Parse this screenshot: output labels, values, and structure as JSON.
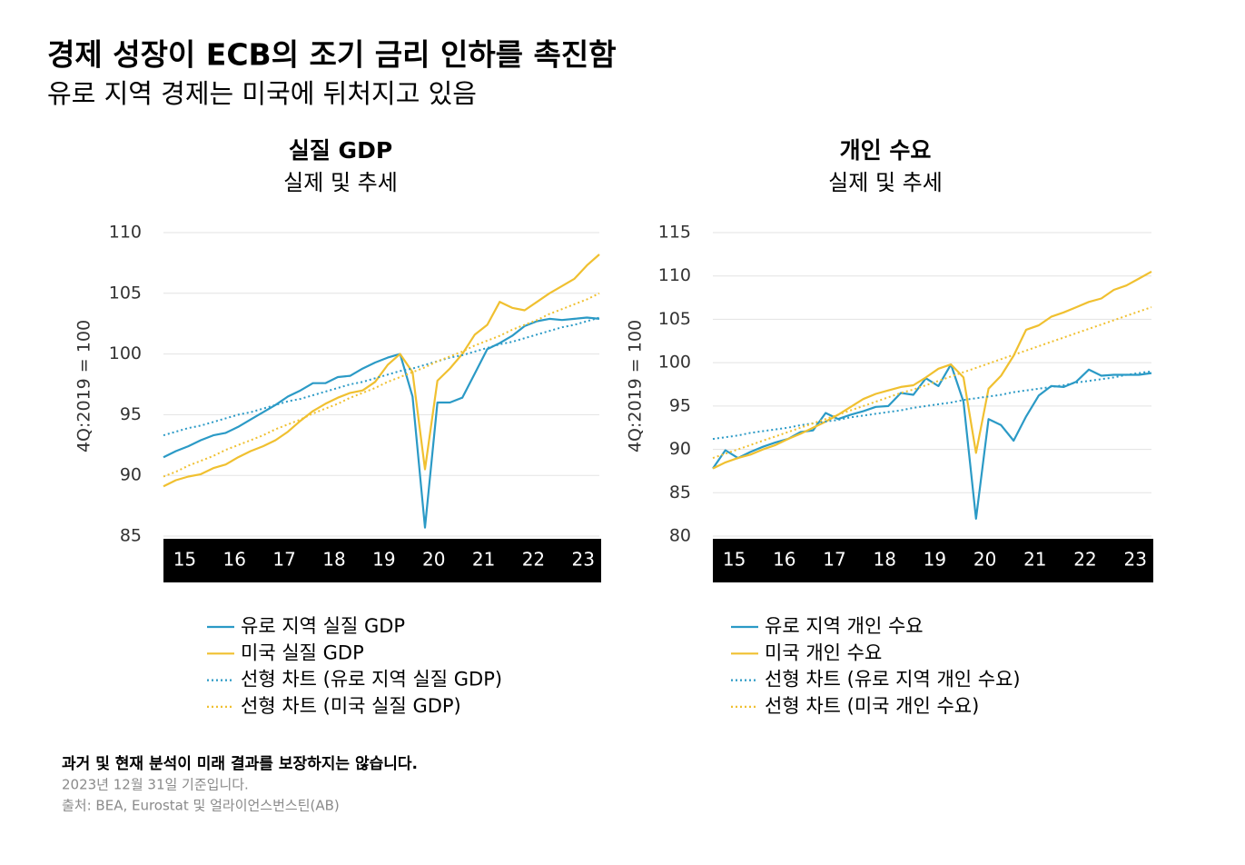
{
  "title": "경제 성장이 ECB의 조기 금리 인하를 촉진함",
  "subtitle": "유로 지역 경제는 미국에 뒤처지고 있음",
  "footnote": "과거 및 현재 분석이 미래 결과를 보장하지는 않습니다.",
  "date_note": "2023년 12월 31일 기준입니다.",
  "source": "출처: BEA, Eurostat 및 얼라이언스번스틴(AB)",
  "chart_data": [
    {
      "type": "line",
      "title": "실질 GDP",
      "subtitle": "실제 및 추세",
      "ylabel": "4Q:2019 = 100",
      "categories": [
        null,
        null,
        "15",
        null,
        null,
        null,
        "16",
        null,
        null,
        null,
        "17",
        null,
        null,
        null,
        "18",
        null,
        null,
        null,
        "19",
        null,
        null,
        null,
        "20",
        null,
        null,
        null,
        "21",
        null,
        null,
        null,
        "22",
        null,
        null,
        null,
        "23",
        null
      ],
      "ylim": [
        85,
        110
      ],
      "yticks": [
        85,
        90,
        95,
        100,
        105,
        110
      ],
      "grid": true,
      "series": [
        {
          "name": "유로 지역 실질 GDP",
          "color": "#2b9ac6",
          "dashed": false,
          "values": [
            91.5,
            92.0,
            92.4,
            92.9,
            93.3,
            93.5,
            94.0,
            94.6,
            95.2,
            95.8,
            96.5,
            97.0,
            97.6,
            97.6,
            98.1,
            98.2,
            98.8,
            99.3,
            99.7,
            100.0,
            96.5,
            85.7,
            96.0,
            96.0,
            96.4,
            98.4,
            100.4,
            100.9,
            101.5,
            102.3,
            102.7,
            102.9,
            102.8,
            102.9,
            103.0,
            102.9
          ]
        },
        {
          "name": "미국 실질 GDP",
          "color": "#f0c030",
          "dashed": false,
          "values": [
            89.1,
            89.6,
            89.9,
            90.1,
            90.6,
            90.9,
            91.5,
            92.0,
            92.4,
            92.9,
            93.6,
            94.5,
            95.3,
            95.9,
            96.4,
            96.8,
            97.0,
            97.7,
            99.1,
            100.0,
            98.5,
            90.5,
            97.8,
            98.8,
            100.0,
            101.6,
            102.4,
            104.3,
            103.8,
            103.6,
            104.3,
            105.0,
            105.6,
            106.2,
            107.3,
            108.2
          ]
        },
        {
          "name": "선형 차트 (유로 지역 실질 GDP)",
          "color": "#2b9ac6",
          "dashed": true,
          "values": [
            93.3,
            93.6,
            93.9,
            94.1,
            94.4,
            94.7,
            95.0,
            95.2,
            95.5,
            95.8,
            96.1,
            96.3,
            96.6,
            96.9,
            97.2,
            97.5,
            97.7,
            98.0,
            98.3,
            98.6,
            98.8,
            99.1,
            99.4,
            99.7,
            99.9,
            100.2,
            100.5,
            100.8,
            101.0,
            101.3,
            101.6,
            101.9,
            102.2,
            102.4,
            102.7,
            103.0
          ]
        },
        {
          "name": "선형 차트 (미국 실질 GDP)",
          "color": "#f0c030",
          "dashed": true,
          "values": [
            89.9,
            90.3,
            90.8,
            91.2,
            91.6,
            92.1,
            92.5,
            92.9,
            93.3,
            93.8,
            94.2,
            94.6,
            95.1,
            95.5,
            95.9,
            96.4,
            96.8,
            97.2,
            97.7,
            98.1,
            98.5,
            98.9,
            99.4,
            99.8,
            100.2,
            100.7,
            101.1,
            101.5,
            102.0,
            102.4,
            102.8,
            103.3,
            103.7,
            104.1,
            104.5,
            105.0
          ]
        }
      ]
    },
    {
      "type": "line",
      "title": "개인 수요",
      "subtitle": "실제 및 추세",
      "ylabel": "4Q:2019 = 100",
      "categories": [
        null,
        null,
        "15",
        null,
        null,
        null,
        "16",
        null,
        null,
        null,
        "17",
        null,
        null,
        null,
        "18",
        null,
        null,
        null,
        "19",
        null,
        null,
        null,
        "20",
        null,
        null,
        null,
        "21",
        null,
        null,
        null,
        "22",
        null,
        null,
        null,
        "23",
        null
      ],
      "ylim": [
        80,
        115
      ],
      "yticks": [
        80,
        85,
        90,
        95,
        100,
        105,
        110,
        115
      ],
      "grid": true,
      "series": [
        {
          "name": "유로 지역 개인 수요",
          "color": "#2b9ac6",
          "dashed": false,
          "values": [
            87.8,
            89.9,
            89.0,
            89.7,
            90.3,
            90.8,
            91.2,
            92.0,
            92.2,
            94.2,
            93.5,
            94.0,
            94.4,
            94.9,
            95.0,
            96.5,
            96.3,
            98.2,
            97.3,
            99.8,
            95.5,
            82.0,
            93.5,
            92.8,
            91.0,
            93.8,
            96.2,
            97.3,
            97.2,
            97.8,
            99.2,
            98.5,
            98.6,
            98.6,
            98.6,
            98.8
          ]
        },
        {
          "name": "미국 개인 수요",
          "color": "#f0c030",
          "dashed": false,
          "values": [
            87.8,
            88.5,
            89.0,
            89.4,
            90.0,
            90.5,
            91.2,
            91.8,
            92.5,
            93.2,
            94.0,
            94.9,
            95.8,
            96.4,
            96.8,
            97.2,
            97.4,
            98.3,
            99.3,
            99.8,
            98.3,
            89.6,
            97.0,
            98.5,
            100.8,
            103.8,
            104.3,
            105.3,
            105.8,
            106.4,
            107.0,
            107.4,
            108.4,
            108.9,
            109.7,
            110.5
          ]
        },
        {
          "name": "선형 차트 (유로 지역 개인 수요)",
          "color": "#2b9ac6",
          "dashed": true,
          "values": [
            91.2,
            91.4,
            91.6,
            91.9,
            92.1,
            92.3,
            92.5,
            92.8,
            93.0,
            93.2,
            93.4,
            93.7,
            93.9,
            94.1,
            94.3,
            94.5,
            94.8,
            95.0,
            95.2,
            95.4,
            95.7,
            95.9,
            96.1,
            96.3,
            96.6,
            96.8,
            97.0,
            97.2,
            97.4,
            97.7,
            97.9,
            98.1,
            98.3,
            98.6,
            98.8,
            99.0
          ]
        },
        {
          "name": "선형 차트 (미국 개인 수요)",
          "color": "#f0c030",
          "dashed": true,
          "values": [
            89.0,
            89.5,
            90.0,
            90.5,
            91.0,
            91.5,
            92.0,
            92.5,
            93.0,
            93.5,
            94.0,
            94.5,
            95.0,
            95.5,
            96.0,
            96.5,
            96.9,
            97.4,
            97.9,
            98.4,
            98.9,
            99.4,
            99.9,
            100.4,
            100.9,
            101.4,
            101.9,
            102.4,
            102.9,
            103.4,
            103.9,
            104.4,
            104.9,
            105.4,
            105.9,
            106.4
          ]
        }
      ]
    }
  ]
}
